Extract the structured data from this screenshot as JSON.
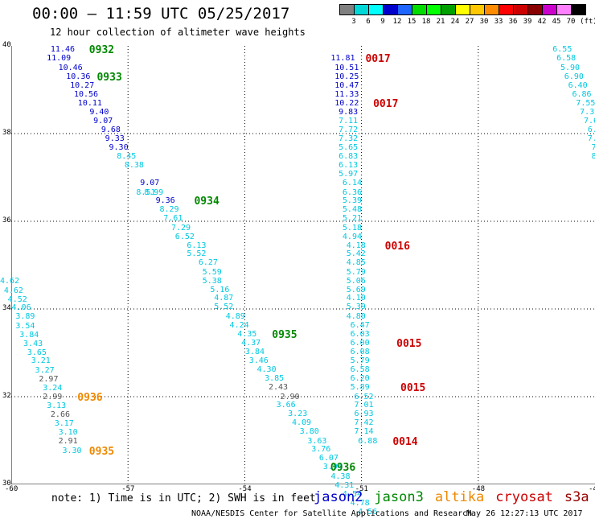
{
  "header": {
    "title": "00:00 – 11:59 UTC 05/25/2017",
    "subtitle": "12 hour collection of altimeter wave heights"
  },
  "colorbar": {
    "colors": [
      "#808080",
      "#00d8d8",
      "#00ffff",
      "#0000cc",
      "#1e64ff",
      "#00dc00",
      "#00ff00",
      "#00a000",
      "#ffff00",
      "#ffc800",
      "#ff8c00",
      "#ff0000",
      "#cc0000",
      "#880000",
      "#cc00cc",
      "#ff80ff",
      "#000000"
    ],
    "labels": [
      "3",
      "6",
      "9",
      "12",
      "15",
      "18",
      "21",
      "24",
      "27",
      "30",
      "33",
      "36",
      "39",
      "42",
      "45",
      "70"
    ],
    "unit": "(ft)"
  },
  "axes": {
    "x_ticks": [
      "-60",
      "-57",
      "-54",
      "-51",
      "-48",
      "-45"
    ],
    "y_ticks": [
      "40",
      "38",
      "36",
      "34",
      "32",
      "30"
    ],
    "lon_range": [
      -60,
      -45
    ],
    "lat_range": [
      30,
      40
    ]
  },
  "satellite_colors": {
    "jason2": "#0000cc",
    "jason3": "#008800",
    "altika": "#ee8800",
    "cryosat": "#cc0000",
    "s3a": "#990000",
    "gray": "#555555",
    "cyan": "#00c8e0"
  },
  "tracks": [
    {
      "satellite": "jason2",
      "color": "jason2",
      "points": [
        {
          "lon": -58.7,
          "lat": 39.9,
          "v": "11.46"
        },
        {
          "lon": -58.8,
          "lat": 39.7,
          "v": "11.09"
        },
        {
          "lon": -58.5,
          "lat": 39.49,
          "v": "10.46"
        },
        {
          "lon": -58.3,
          "lat": 39.29,
          "v": "10.36"
        },
        {
          "lon": -58.2,
          "lat": 39.09,
          "v": "10.27"
        },
        {
          "lon": -58.1,
          "lat": 38.88,
          "v": "10.56"
        },
        {
          "lon": -58.0,
          "lat": 38.68,
          "v": "10.11"
        },
        {
          "lon": -57.7,
          "lat": 38.48,
          "v": "9.40"
        },
        {
          "lon": -57.6,
          "lat": 38.28,
          "v": "9.07"
        },
        {
          "lon": -57.4,
          "lat": 38.08,
          "v": "9.68"
        },
        {
          "lon": -57.3,
          "lat": 37.87,
          "v": "9.33"
        },
        {
          "lon": -57.2,
          "lat": 37.67,
          "v": "9.30"
        },
        {
          "lon": -56.4,
          "lat": 36.86,
          "v": "9.07"
        },
        {
          "lon": -56.0,
          "lat": 36.45,
          "v": "9.36"
        }
      ]
    },
    {
      "satellite": "jason2-cyan",
      "color": "cyan",
      "points": [
        {
          "lon": -57.0,
          "lat": 37.47,
          "v": "8.45"
        },
        {
          "lon": -56.8,
          "lat": 37.26,
          "v": "8.38"
        },
        {
          "lon": -56.5,
          "lat": 36.65,
          "v": "8.51"
        },
        {
          "lon": -56.3,
          "lat": 36.65,
          "v": "8.99"
        },
        {
          "lon": -55.9,
          "lat": 36.25,
          "v": "8.29"
        },
        {
          "lon": -55.8,
          "lat": 36.05,
          "v": "7.61"
        },
        {
          "lon": -55.6,
          "lat": 35.84,
          "v": "7.29"
        },
        {
          "lon": -55.5,
          "lat": 35.64,
          "v": "6.52"
        },
        {
          "lon": -55.2,
          "lat": 35.44,
          "v": "6.13"
        },
        {
          "lon": -55.2,
          "lat": 35.24,
          "v": "5.52"
        },
        {
          "lon": -54.9,
          "lat": 35.04,
          "v": "6.27"
        },
        {
          "lon": -54.8,
          "lat": 34.83,
          "v": "5.59"
        },
        {
          "lon": -54.8,
          "lat": 34.63,
          "v": "5.38"
        },
        {
          "lon": -54.6,
          "lat": 34.43,
          "v": "5.16"
        },
        {
          "lon": -54.5,
          "lat": 34.23,
          "v": "4.87"
        },
        {
          "lon": -54.5,
          "lat": 34.03,
          "v": "5.52"
        },
        {
          "lon": -54.2,
          "lat": 33.82,
          "v": "4.89"
        },
        {
          "lon": -54.1,
          "lat": 33.62,
          "v": "4.24"
        },
        {
          "lon": -53.9,
          "lat": 33.42,
          "v": "4.35"
        },
        {
          "lon": -53.8,
          "lat": 33.22,
          "v": "4.37"
        },
        {
          "lon": -53.7,
          "lat": 33.01,
          "v": "3.84"
        },
        {
          "lon": -53.6,
          "lat": 32.81,
          "v": "3.46"
        },
        {
          "lon": -53.4,
          "lat": 32.61,
          "v": "4.30"
        },
        {
          "lon": -53.2,
          "lat": 32.41,
          "v": "3.85"
        },
        {
          "lon": -52.9,
          "lat": 31.79,
          "v": "3.66"
        },
        {
          "lon": -52.6,
          "lat": 31.59,
          "v": "3.23"
        },
        {
          "lon": -52.5,
          "lat": 31.39,
          "v": "4.09"
        },
        {
          "lon": -52.3,
          "lat": 31.19,
          "v": "3.80"
        },
        {
          "lon": -52.1,
          "lat": 30.98,
          "v": "3.63"
        },
        {
          "lon": -52.0,
          "lat": 30.78,
          "v": "3.76"
        },
        {
          "lon": -51.8,
          "lat": 30.58,
          "v": "6.07"
        },
        {
          "lon": -51.7,
          "lat": 30.38,
          "v": "3.94"
        },
        {
          "lon": -51.5,
          "lat": 30.17,
          "v": "4.38"
        },
        {
          "lon": -51.4,
          "lat": 29.97,
          "v": "4.31"
        },
        {
          "lon": -51.2,
          "lat": 29.77,
          "v": "4.54"
        },
        {
          "lon": -51.0,
          "lat": 29.56,
          "v": "4.78"
        },
        {
          "lon": -50.8,
          "lat": 29.36,
          "v": "4.56"
        }
      ]
    },
    {
      "satellite": "gray-mid",
      "color": "gray",
      "points": [
        {
          "lon": -53.1,
          "lat": 32.2,
          "v": "2.43"
        },
        {
          "lon": -52.8,
          "lat": 31.99,
          "v": "2.90"
        }
      ]
    },
    {
      "satellite": "left-cyan",
      "color": "cyan",
      "points": [
        {
          "lon": -60.0,
          "lat": 34.62,
          "v": "4.62"
        },
        {
          "lon": -59.9,
          "lat": 34.41,
          "v": "4.62"
        },
        {
          "lon": -59.8,
          "lat": 34.21,
          "v": "4.52"
        },
        {
          "lon": -59.7,
          "lat": 34.01,
          "v": "4.06"
        },
        {
          "lon": -59.6,
          "lat": 33.81,
          "v": "3.89"
        },
        {
          "lon": -59.6,
          "lat": 33.6,
          "v": "3.54"
        },
        {
          "lon": -59.5,
          "lat": 33.4,
          "v": "3.84"
        },
        {
          "lon": -59.4,
          "lat": 33.2,
          "v": "3.43"
        },
        {
          "lon": -59.3,
          "lat": 33.0,
          "v": "3.65"
        },
        {
          "lon": -59.2,
          "lat": 32.8,
          "v": "3.21"
        },
        {
          "lon": -59.1,
          "lat": 32.59,
          "v": "3.27"
        },
        {
          "lon": -58.9,
          "lat": 32.19,
          "v": "3.24"
        },
        {
          "lon": -58.8,
          "lat": 31.78,
          "v": "3.13"
        },
        {
          "lon": -58.6,
          "lat": 31.37,
          "v": "3.17"
        },
        {
          "lon": -58.5,
          "lat": 31.17,
          "v": "3.10"
        },
        {
          "lon": -58.4,
          "lat": 30.76,
          "v": "3.30"
        }
      ]
    },
    {
      "satellite": "left-gray",
      "color": "gray",
      "points": [
        {
          "lon": -59.0,
          "lat": 32.39,
          "v": "2.97"
        },
        {
          "lon": -58.9,
          "lat": 31.98,
          "v": "2.99"
        },
        {
          "lon": -58.7,
          "lat": 31.58,
          "v": "2.66"
        },
        {
          "lon": -58.5,
          "lat": 30.97,
          "v": "2.91"
        }
      ]
    },
    {
      "satellite": "cryosat-track",
      "color": "jason2",
      "points": [
        {
          "lon": -51.5,
          "lat": 39.7,
          "v": "11.81"
        },
        {
          "lon": -51.4,
          "lat": 39.49,
          "v": "10.51"
        },
        {
          "lon": -51.4,
          "lat": 39.29,
          "v": "10.25"
        },
        {
          "lon": -51.4,
          "lat": 39.09,
          "v": "10.47"
        },
        {
          "lon": -51.4,
          "lat": 38.88,
          "v": "11.33"
        },
        {
          "lon": -51.4,
          "lat": 38.68,
          "v": "10.22"
        },
        {
          "lon": -51.3,
          "lat": 38.48,
          "v": "9.83"
        }
      ]
    },
    {
      "satellite": "cryosat-cyan",
      "color": "cyan",
      "points": [
        {
          "lon": -51.3,
          "lat": 38.28,
          "v": "7.11"
        },
        {
          "lon": -51.3,
          "lat": 38.08,
          "v": "7.72"
        },
        {
          "lon": -51.3,
          "lat": 37.87,
          "v": "7.32"
        },
        {
          "lon": -51.3,
          "lat": 37.67,
          "v": "5.65"
        },
        {
          "lon": -51.3,
          "lat": 37.47,
          "v": "6.83"
        },
        {
          "lon": -51.3,
          "lat": 37.26,
          "v": "6.13"
        },
        {
          "lon": -51.3,
          "lat": 37.06,
          "v": "5.97"
        },
        {
          "lon": -51.2,
          "lat": 36.86,
          "v": "6.14"
        },
        {
          "lon": -51.2,
          "lat": 36.65,
          "v": "6.36"
        },
        {
          "lon": -51.2,
          "lat": 36.45,
          "v": "5.39"
        },
        {
          "lon": -51.2,
          "lat": 36.25,
          "v": "5.48"
        },
        {
          "lon": -51.2,
          "lat": 36.05,
          "v": "5.21"
        },
        {
          "lon": -51.2,
          "lat": 35.84,
          "v": "5.18"
        },
        {
          "lon": -51.2,
          "lat": 35.64,
          "v": "4.94"
        },
        {
          "lon": -51.1,
          "lat": 35.44,
          "v": "4.18"
        },
        {
          "lon": -51.1,
          "lat": 35.24,
          "v": "5.42"
        },
        {
          "lon": -51.1,
          "lat": 35.04,
          "v": "4.85"
        },
        {
          "lon": -51.1,
          "lat": 34.83,
          "v": "5.79"
        },
        {
          "lon": -51.1,
          "lat": 34.63,
          "v": "5.06"
        },
        {
          "lon": -51.1,
          "lat": 34.43,
          "v": "5.69"
        },
        {
          "lon": -51.1,
          "lat": 34.23,
          "v": "4.10"
        },
        {
          "lon": -51.1,
          "lat": 34.03,
          "v": "5.39"
        },
        {
          "lon": -51.1,
          "lat": 33.82,
          "v": "4.80"
        },
        {
          "lon": -51.0,
          "lat": 33.62,
          "v": "6.47"
        },
        {
          "lon": -51.0,
          "lat": 33.42,
          "v": "6.03"
        },
        {
          "lon": -51.0,
          "lat": 33.22,
          "v": "6.00"
        },
        {
          "lon": -51.0,
          "lat": 33.01,
          "v": "6.08"
        },
        {
          "lon": -51.0,
          "lat": 32.81,
          "v": "5.79"
        },
        {
          "lon": -51.0,
          "lat": 32.61,
          "v": "6.58"
        },
        {
          "lon": -51.0,
          "lat": 32.41,
          "v": "6.20"
        },
        {
          "lon": -51.0,
          "lat": 32.2,
          "v": "5.89"
        },
        {
          "lon": -50.9,
          "lat": 31.99,
          "v": "6.52"
        },
        {
          "lon": -50.9,
          "lat": 31.79,
          "v": "7.01"
        },
        {
          "lon": -50.9,
          "lat": 31.59,
          "v": "6.93"
        },
        {
          "lon": -50.9,
          "lat": 31.39,
          "v": "7.42"
        },
        {
          "lon": -50.9,
          "lat": 31.19,
          "v": "7.14"
        },
        {
          "lon": -50.8,
          "lat": 30.98,
          "v": "6.88"
        }
      ]
    },
    {
      "satellite": "right-cyan",
      "color": "cyan",
      "points": [
        {
          "lon": -45.8,
          "lat": 39.9,
          "v": "6.55"
        },
        {
          "lon": -45.7,
          "lat": 39.7,
          "v": "6.58"
        },
        {
          "lon": -45.6,
          "lat": 39.49,
          "v": "5.90"
        },
        {
          "lon": -45.5,
          "lat": 39.29,
          "v": "6.90"
        },
        {
          "lon": -45.4,
          "lat": 39.09,
          "v": "6.40"
        },
        {
          "lon": -45.3,
          "lat": 38.88,
          "v": "6.86"
        },
        {
          "lon": -45.2,
          "lat": 38.68,
          "v": "7.55"
        },
        {
          "lon": -45.1,
          "lat": 38.48,
          "v": "7.37"
        },
        {
          "lon": -45.0,
          "lat": 38.28,
          "v": "7.6"
        },
        {
          "lon": -44.9,
          "lat": 38.08,
          "v": "6.5"
        },
        {
          "lon": -44.9,
          "lat": 37.87,
          "v": "7."
        },
        {
          "lon": -44.8,
          "lat": 37.67,
          "v": "7."
        },
        {
          "lon": -44.8,
          "lat": 37.47,
          "v": "8"
        }
      ]
    }
  ],
  "passes": [
    {
      "text": "0932",
      "lon": -58.0,
      "lat": 39.9,
      "color": "jason3"
    },
    {
      "text": "0933",
      "lon": -57.8,
      "lat": 39.29,
      "color": "jason3"
    },
    {
      "text": "0934",
      "lon": -55.3,
      "lat": 36.45,
      "color": "jason3"
    },
    {
      "text": "0935",
      "lon": -53.3,
      "lat": 33.42,
      "color": "jason3"
    },
    {
      "text": "0936",
      "lon": -51.8,
      "lat": 30.38,
      "color": "jason3"
    },
    {
      "text": "0936",
      "lon": -58.3,
      "lat": 31.98,
      "color": "altika"
    },
    {
      "text": "0935",
      "lon": -58.0,
      "lat": 30.76,
      "color": "altika"
    },
    {
      "text": "0017",
      "lon": -50.9,
      "lat": 39.7,
      "color": "cryosat"
    },
    {
      "text": "0017",
      "lon": -50.7,
      "lat": 38.68,
      "color": "cryosat"
    },
    {
      "text": "0016",
      "lon": -50.4,
      "lat": 35.44,
      "color": "cryosat"
    },
    {
      "text": "0015",
      "lon": -50.1,
      "lat": 33.22,
      "color": "cryosat"
    },
    {
      "text": "0015",
      "lon": -50.0,
      "lat": 32.2,
      "color": "cryosat"
    },
    {
      "text": "0014",
      "lon": -50.2,
      "lat": 30.98,
      "color": "cryosat"
    }
  ],
  "footer": {
    "note": "note: 1) Time is in UTC; 2) SWH is in feet",
    "satellites": [
      {
        "name": "jason2",
        "color": "jason2"
      },
      {
        "name": "jason3",
        "color": "jason3"
      },
      {
        "name": "altika",
        "color": "altika"
      },
      {
        "name": "cryosat",
        "color": "cryosat"
      },
      {
        "name": "s3a",
        "color": "s3a"
      }
    ],
    "credit": "NOAA/NESDIS Center for Satellite Applications and Research",
    "timestamp": "May 26 12:27:13 UTC 2017"
  }
}
